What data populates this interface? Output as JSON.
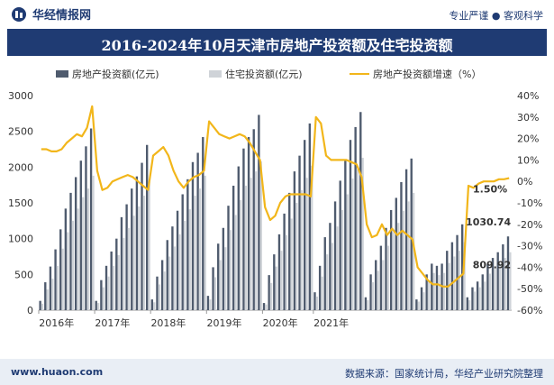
{
  "header": {
    "brand": "华经情报网",
    "tagline": "专业严谨 ● 客观科学",
    "title": "2016-2024年10月天津市房地产投资额及住宅投资额"
  },
  "footer": {
    "site": "www.huaon.com",
    "source": "数据来源：国家统计局，华经产业研究院整理"
  },
  "colors": {
    "realestate_bar": "#4f5b6e",
    "residential_bar": "#cfd3d8",
    "growth_line": "#f2b61a",
    "header_bg": "#1f3b73"
  },
  "chart_data": {
    "type": "bar",
    "title": "2016-2024年10月天津市房地产投资额及住宅投资额",
    "legend": [
      "房地产投资额(亿元)",
      "住宅投资额(亿元)",
      "房地产投资额增速（%）"
    ],
    "year_labels": [
      "2016年",
      "2017年",
      "2018年",
      "2019年",
      "2020年",
      "2021年"
    ],
    "y_left": {
      "min": 0,
      "max": 3000,
      "ticks": [
        0,
        500,
        1000,
        1500,
        2000,
        2500,
        3000
      ]
    },
    "y_right": {
      "min": -60,
      "max": 40,
      "ticks": [
        "40%",
        "30%",
        "20%",
        "10%",
        "0%",
        "-10%",
        "-20%",
        "-30%",
        "-40%",
        "-50%",
        "-60%"
      ]
    },
    "series": [
      {
        "name": "房地产投资额(亿元)",
        "values": [
          130,
          390,
          610,
          850,
          1130,
          1420,
          1640,
          1860,
          2090,
          2290,
          2540,
          130,
          420,
          620,
          820,
          1000,
          1300,
          1480,
          1700,
          1870,
          2060,
          2310,
          150,
          470,
          700,
          980,
          1170,
          1390,
          1620,
          1830,
          2070,
          2200,
          2420,
          200,
          600,
          930,
          1150,
          1460,
          1740,
          2010,
          2260,
          2420,
          2530,
          2730,
          100,
          490,
          780,
          1060,
          1350,
          1640,
          1940,
          2160,
          2380,
          2610,
          250,
          620,
          1020,
          1220,
          1520,
          1810,
          2100,
          2380,
          2560,
          2770,
          180,
          500,
          700,
          900,
          1150,
          1400,
          1570,
          1790,
          1970,
          2120,
          150,
          320,
          500,
          650,
          620,
          650,
          830,
          950,
          1050,
          1200,
          180,
          320,
          400,
          500,
          640,
          730,
          810,
          920,
          1030.74
        ],
        "labels": {
          "last": "1030.74"
        }
      },
      {
        "name": "住宅投资额(亿元)",
        "values": [
          90,
          290,
          440,
          620,
          860,
          1090,
          1250,
          1420,
          1580,
          1700,
          1880,
          100,
          320,
          470,
          620,
          770,
          1010,
          1150,
          1320,
          1450,
          1600,
          1800,
          110,
          360,
          540,
          750,
          890,
          1060,
          1250,
          1410,
          1600,
          1700,
          1880,
          150,
          460,
          700,
          880,
          1120,
          1330,
          1540,
          1740,
          1850,
          1940,
          2080,
          80,
          380,
          610,
          830,
          1050,
          1280,
          1500,
          1680,
          1850,
          2020,
          190,
          470,
          780,
          940,
          1170,
          1400,
          1620,
          1840,
          1970,
          2130,
          140,
          390,
          550,
          700,
          900,
          1090,
          1220,
          1390,
          1520,
          1640,
          120,
          250,
          400,
          520,
          490,
          520,
          660,
          750,
          830,
          950,
          140,
          260,
          320,
          400,
          510,
          590,
          650,
          730,
          809.92
        ],
        "labels": {
          "last": "809.92"
        }
      },
      {
        "name": "房地产投资额增速（%）",
        "values": [
          15,
          15,
          14,
          14,
          15,
          18,
          20,
          22,
          21,
          25,
          35,
          5,
          -4,
          -3,
          0,
          1,
          2,
          3,
          2,
          0,
          -2,
          -4,
          12,
          14,
          16,
          12,
          5,
          0,
          -3,
          0,
          2,
          3,
          5,
          28,
          25,
          22,
          21,
          20,
          21,
          22,
          21,
          18,
          14,
          10,
          -12,
          -18,
          -16,
          -10,
          -7,
          -6,
          -6,
          -6,
          -6,
          -7,
          30,
          27,
          12,
          10,
          10,
          10,
          10,
          9,
          8,
          2,
          -20,
          -26,
          -25,
          -20,
          -25,
          -22,
          -25,
          -23,
          -25,
          -27,
          -40,
          -43,
          -46,
          -48,
          -48,
          -49,
          -49,
          -47,
          -45,
          -43,
          -2,
          -3,
          -1,
          0,
          0,
          0,
          1,
          1,
          1.5
        ],
        "labels": {
          "last": "1.50%"
        }
      }
    ]
  }
}
